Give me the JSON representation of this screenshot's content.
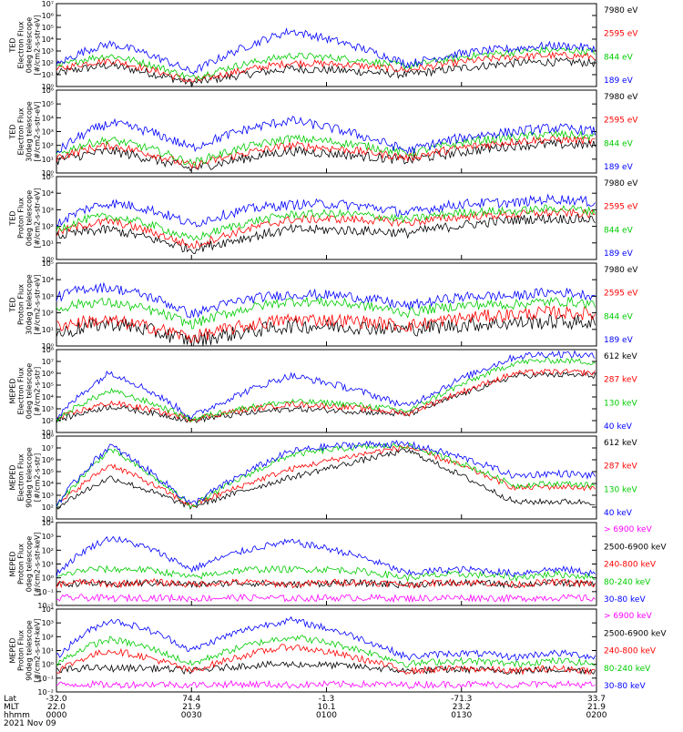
{
  "chart_data": {
    "type": "line",
    "x_axis": {
      "rows": [
        {
          "label": "Lat",
          "values": [
            "-32.0",
            "74.4",
            "-1.3",
            "-71.3",
            "33.7"
          ]
        },
        {
          "label": "MLT",
          "values": [
            "22.0",
            "21.9",
            "10.1",
            "23.2",
            "21.9"
          ]
        },
        {
          "label": "hhmm",
          "values": [
            "0000",
            "0030",
            "0100",
            "0130",
            "0200"
          ]
        }
      ],
      "date": "2021 Nov 09",
      "xlim": [
        0,
        120
      ],
      "tick_minutes": [
        0,
        30,
        60,
        90,
        120
      ]
    },
    "panels": [
      {
        "ylabel": [
          "TED",
          "Electron Flux",
          "0deg telescope",
          "[#/cm2-s-str-eV]"
        ],
        "log_range": [
          0,
          7
        ],
        "tick_labels": [
          "10⁰",
          "10¹",
          "10²",
          "10³",
          "10⁴",
          "10⁵",
          "10⁶",
          "10⁷"
        ],
        "series": [
          {
            "name": "7980 eV",
            "color": "#000000",
            "envelope": [
              1.1,
              1.8,
              0.3,
              1.5,
              1.0,
              2.0
            ],
            "peak_log": 2.3,
            "noise": 0.35
          },
          {
            "name": "2595 eV",
            "color": "#ff0000",
            "envelope": [
              1.4,
              2.2,
              0.4,
              2.0,
              1.4,
              2.5
            ],
            "peak_log": 2.6,
            "noise": 0.3
          },
          {
            "name": "844 eV",
            "color": "#00cc00",
            "envelope": [
              1.6,
              2.6,
              0.7,
              2.6,
              1.7,
              2.9
            ],
            "peak_log": 2.8,
            "noise": 0.3
          },
          {
            "name": "189 eV",
            "color": "#0000ff",
            "envelope": [
              1.8,
              3.6,
              1.2,
              4.7,
              1.9,
              3.2
            ],
            "peak_log": 3.2,
            "noise": 0.35
          }
        ]
      },
      {
        "ylabel": [
          "TED",
          "Electron Flux",
          "30deg telescope",
          "[#/cm2-s-str-eV]"
        ],
        "log_range": [
          0,
          6
        ],
        "tick_labels": [
          "10⁰",
          "10¹",
          "10²",
          "10³",
          "10⁴",
          "10⁵",
          "10⁶"
        ],
        "series": [
          {
            "name": "7980 eV",
            "color": "#000000",
            "envelope": [
              0.9,
              1.6,
              0.3,
              1.6,
              0.9,
              2.0
            ],
            "peak_log": 2.0,
            "noise": 0.35
          },
          {
            "name": "2595 eV",
            "color": "#ff0000",
            "envelope": [
              1.1,
              2.0,
              0.5,
              2.0,
              1.1,
              2.3
            ],
            "peak_log": 2.3,
            "noise": 0.3
          },
          {
            "name": "844 eV",
            "color": "#00cc00",
            "envelope": [
              1.3,
              2.4,
              0.7,
              2.5,
              1.4,
              2.6
            ],
            "peak_log": 2.5,
            "noise": 0.3
          },
          {
            "name": "189 eV",
            "color": "#0000ff",
            "envelope": [
              1.5,
              3.6,
              1.8,
              3.8,
              1.6,
              3.0
            ],
            "peak_log": 2.8,
            "noise": 0.35
          }
        ]
      },
      {
        "ylabel": [
          "TED",
          "Proton Flux",
          "0deg telescope",
          "[#/cm2-s-str-eV]"
        ],
        "log_range": [
          0,
          5
        ],
        "tick_labels": [
          "10⁰",
          "10¹",
          "10²",
          "10³",
          "10⁴",
          "10⁵"
        ],
        "series": [
          {
            "name": "7980 eV",
            "color": "#000000",
            "envelope": [
              1.4,
              1.8,
              0.6,
              1.8,
              1.6,
              2.4
            ],
            "peak_log": 2.6,
            "noise": 0.3
          },
          {
            "name": "2595 eV",
            "color": "#ff0000",
            "envelope": [
              1.6,
              2.3,
              0.8,
              2.4,
              2.2,
              2.7
            ],
            "peak_log": 3.0,
            "noise": 0.25
          },
          {
            "name": "844 eV",
            "color": "#00cc00",
            "envelope": [
              1.8,
              2.6,
              1.2,
              2.7,
              2.4,
              2.9
            ],
            "peak_log": 3.2,
            "noise": 0.25
          },
          {
            "name": "189 eV",
            "color": "#0000ff",
            "envelope": [
              2.1,
              3.4,
              2.1,
              3.3,
              2.8,
              3.4
            ],
            "peak_log": 3.9,
            "noise": 0.3
          }
        ]
      },
      {
        "ylabel": [
          "TED",
          "Proton Flux",
          "30deg telescope",
          "[#/cm2-s-str-eV]"
        ],
        "log_range": [
          0,
          5
        ],
        "tick_labels": [
          "10⁰",
          "10¹",
          "10²",
          "10³",
          "10⁴",
          "10⁵"
        ],
        "series": [
          {
            "name": "7980 eV",
            "color": "#000000",
            "envelope": [
              0.7,
              1.4,
              0.3,
              1.2,
              1.0,
              1.4
            ],
            "peak_log": 1.6,
            "noise": 0.45
          },
          {
            "name": "2595 eV",
            "color": "#ff0000",
            "envelope": [
              1.2,
              1.5,
              0.5,
              1.6,
              1.2,
              1.9
            ],
            "peak_log": 1.8,
            "noise": 0.4
          },
          {
            "name": "844 eV",
            "color": "#00cc00",
            "envelope": [
              2.2,
              2.6,
              1.3,
              2.7,
              2.0,
              2.5
            ],
            "peak_log": 2.8,
            "noise": 0.3
          },
          {
            "name": "189 eV",
            "color": "#0000ff",
            "envelope": [
              2.9,
              3.5,
              1.9,
              3.1,
              2.4,
              3.0
            ],
            "peak_log": 3.4,
            "noise": 0.3
          }
        ]
      },
      {
        "ylabel": [
          "MEPED",
          "Electron Flux",
          "0deg telescope",
          "[#/cm2-s-str]"
        ],
        "log_range": [
          1,
          8
        ],
        "tick_labels": [
          "10¹",
          "10²",
          "10³",
          "10⁴",
          "10⁵",
          "10⁶",
          "10⁷",
          "10⁸"
        ],
        "series": [
          {
            "name": "612 keV",
            "color": "#000000",
            "envelope": [
              2.0,
              3.2,
              2.0,
              3.0,
              2.5,
              5.8
            ],
            "peak_log": 4.8,
            "noise": 0.25
          },
          {
            "name": "287 keV",
            "color": "#ff0000",
            "envelope": [
              2.1,
              3.5,
              2.1,
              3.4,
              2.6,
              6.0
            ],
            "peak_log": 5.0,
            "noise": 0.25
          },
          {
            "name": "130 keV",
            "color": "#00cc00",
            "envelope": [
              2.1,
              4.5,
              2.1,
              3.6,
              2.8,
              6.9
            ],
            "peak_log": 5.1,
            "noise": 0.25
          },
          {
            "name": "40 keV",
            "color": "#0000ff",
            "envelope": [
              2.2,
              6.1,
              2.3,
              5.8,
              3.2,
              7.4
            ],
            "peak_log": 5.2,
            "noise": 0.3
          }
        ]
      },
      {
        "ylabel": [
          "MEPED",
          "Electron Flux",
          "90deg telescope",
          "[#/cm2-s-str]"
        ],
        "log_range": [
          1,
          8
        ],
        "tick_labels": [
          "10¹",
          "10²",
          "10³",
          "10⁴",
          "10⁵",
          "10⁶",
          "10⁷",
          "10⁸"
        ],
        "series": [
          {
            "name": "612 keV",
            "color": "#000000",
            "envelope": [
              2.0,
              4.5,
              2.0,
              4.5,
              6.8,
              2.4
            ],
            "peak_log": 3.8,
            "noise": 0.25
          },
          {
            "name": "287 keV",
            "color": "#ff0000",
            "envelope": [
              2.1,
              5.6,
              2.1,
              5.2,
              7.1,
              3.6
            ],
            "peak_log": 4.6,
            "noise": 0.25
          },
          {
            "name": "130 keV",
            "color": "#00cc00",
            "envelope": [
              2.1,
              6.9,
              2.1,
              6.4,
              7.2,
              3.8
            ],
            "peak_log": 4.7,
            "noise": 0.25
          },
          {
            "name": "40 keV",
            "color": "#0000ff",
            "envelope": [
              2.2,
              7.2,
              2.2,
              6.7,
              7.3,
              4.6
            ],
            "peak_log": 4.9,
            "noise": 0.3
          }
        ]
      },
      {
        "ylabel": [
          "MEPED",
          "Proton Flux",
          "0deg telescope",
          "[#/cm2-s-str-keV]"
        ],
        "log_range": [
          -2,
          4
        ],
        "tick_labels": [
          "10⁻²",
          "10⁻¹",
          "10⁰",
          "10¹",
          "10²",
          "10³",
          "10⁴"
        ],
        "series": [
          {
            "name": "> 6900 keV",
            "color": "#ff00ff",
            "envelope": [
              -1.5,
              -1.5,
              -1.5,
              -1.5,
              -1.5,
              -1.5
            ],
            "peak_log": -0.8,
            "noise": 0.25
          },
          {
            "name": "2500-6900 keV",
            "color": "#000000",
            "envelope": [
              -0.5,
              -0.5,
              -0.5,
              -0.5,
              -0.5,
              -0.5
            ],
            "peak_log": 0.3,
            "noise": 0.25
          },
          {
            "name": "240-800 keV",
            "color": "#ff0000",
            "envelope": [
              -0.5,
              -0.5,
              -0.5,
              -0.5,
              -0.5,
              -0.5
            ],
            "peak_log": 1.0,
            "noise": 0.25
          },
          {
            "name": "80-240 keV",
            "color": "#00cc00",
            "envelope": [
              0.0,
              0.6,
              0.0,
              0.6,
              0.0,
              0.0
            ],
            "peak_log": 1.5,
            "noise": 0.25
          },
          {
            "name": "30-80 keV",
            "color": "#0000ff",
            "envelope": [
              0.3,
              2.9,
              0.6,
              2.6,
              0.3,
              0.3
            ],
            "peak_log": 1.8,
            "noise": 0.25
          }
        ]
      },
      {
        "ylabel": [
          "MEPED",
          "Proton Flux",
          "90deg telescope",
          "[#/cm2-s-str-keV]"
        ],
        "log_range": [
          -2,
          4
        ],
        "tick_labels": [
          "10⁻²",
          "10⁻¹",
          "10⁰",
          "10¹",
          "10²",
          "10³",
          "10⁴"
        ],
        "series": [
          {
            "name": "> 6900 keV",
            "color": "#ff00ff",
            "envelope": [
              -1.5,
              -1.5,
              -1.5,
              -1.5,
              -1.5,
              -1.5
            ],
            "peak_log": -0.8,
            "noise": 0.25
          },
          {
            "name": "2500-6900 keV",
            "color": "#000000",
            "envelope": [
              -0.5,
              -0.3,
              -0.5,
              0.0,
              -0.5,
              -0.5
            ],
            "peak_log": 0.3,
            "noise": 0.25
          },
          {
            "name": "240-800 keV",
            "color": "#ff0000",
            "envelope": [
              -0.5,
              1.0,
              -0.5,
              1.3,
              -0.5,
              -0.5
            ],
            "peak_log": 1.0,
            "noise": 0.25
          },
          {
            "name": "80-240 keV",
            "color": "#00cc00",
            "envelope": [
              0.0,
              1.8,
              0.0,
              2.0,
              0.0,
              0.0
            ],
            "peak_log": 1.5,
            "noise": 0.25
          },
          {
            "name": "30-80 keV",
            "color": "#0000ff",
            "envelope": [
              0.5,
              3.2,
              1.0,
              3.2,
              0.5,
              0.5
            ],
            "peak_log": 2.0,
            "noise": 0.25
          }
        ]
      }
    ]
  }
}
